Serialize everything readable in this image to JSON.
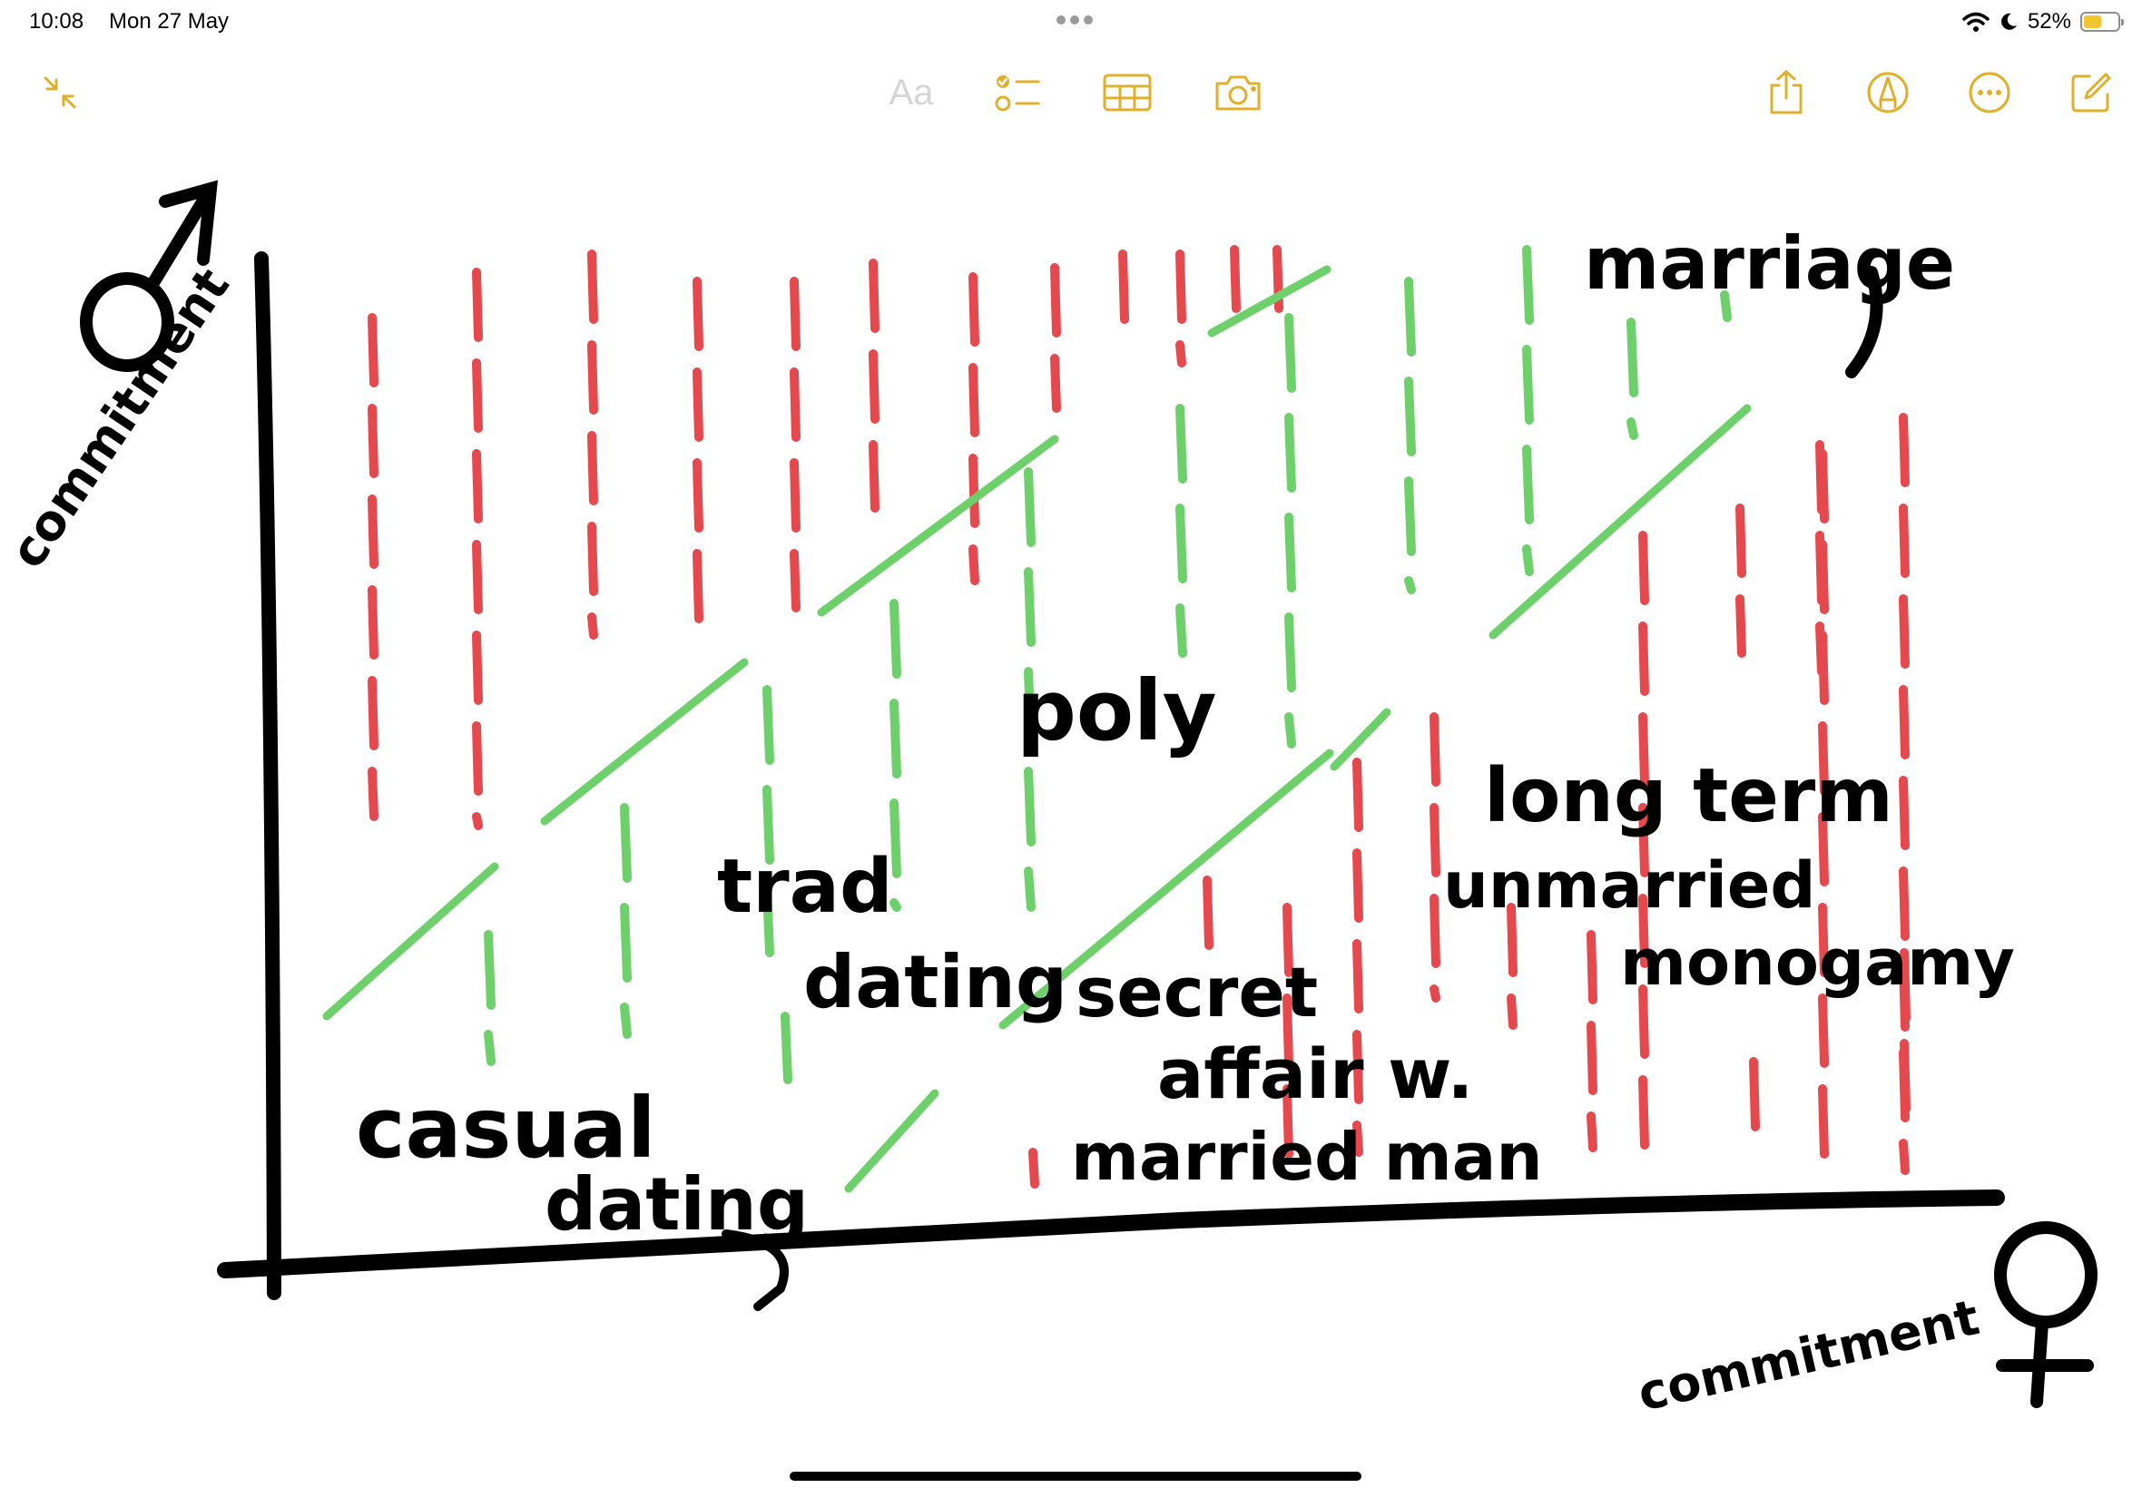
{
  "status": {
    "time": "10:08",
    "date": "Mon 27 May",
    "battery_percent": "52%",
    "battery_level": 0.52
  },
  "toolbar": {
    "format_label": "Aa",
    "accent_color": "#e0b02c",
    "icons": [
      "collapse-icon",
      "checklist-icon",
      "table-icon",
      "camera-icon",
      "share-icon",
      "markup-icon",
      "more-icon",
      "compose-icon"
    ]
  },
  "drawing": {
    "y_axis_label": "commitment",
    "x_axis_label": "commitment",
    "y_axis_symbol": "♂",
    "x_axis_symbol": "♀",
    "labels": {
      "casual_1": "casual",
      "casual_2": "dating",
      "trad_1": "trad",
      "trad_2": "dating",
      "poly": "poly",
      "secret_1": "secret",
      "secret_2": "affair w.",
      "secret_3": "married man",
      "long_term_1": "long term",
      "long_term_2": "unmarried",
      "monogamy": "monogamy",
      "marriage": "marriage"
    },
    "colors": {
      "ink": "#000000",
      "red_lines": "#e5484d",
      "green_lines": "#6dd06a"
    }
  }
}
